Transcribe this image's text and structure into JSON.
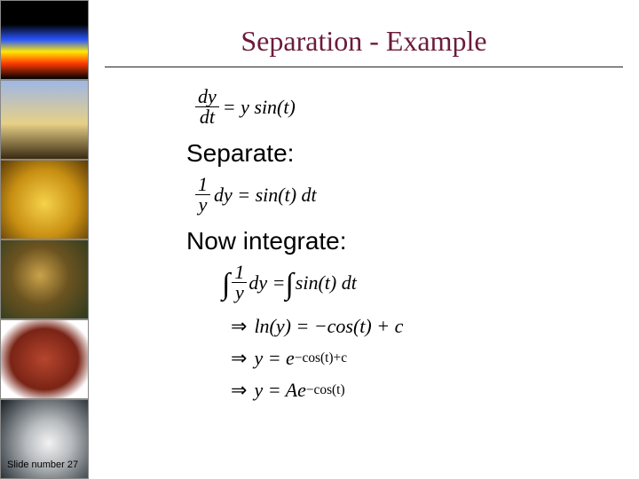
{
  "title": "Separation - Example",
  "labels": {
    "separate": "Separate:",
    "integrate": "Now integrate:"
  },
  "equations": {
    "ode_lhs_num": "dy",
    "ode_lhs_den": "dt",
    "ode_rhs": " = y sin(t)",
    "sep_frac_num": "1",
    "sep_frac_den": "y",
    "sep_rhs": " dy = sin(t) dt",
    "int_lhs_frac_num": "1",
    "int_lhs_frac_den": "y",
    "int_lhs_after": " dy = ",
    "int_rhs": "sin(t) dt",
    "res1": " ln(y) = −cos(t) + c",
    "res2_pre": " y = e",
    "res2_exp": "−cos(t)+c",
    "res3_pre": " y = Ae",
    "res3_exp": "−cos(t)"
  },
  "footer": "Slide number 27",
  "colors": {
    "title": "#6b1b3a",
    "rule": "#222222",
    "text": "#000000",
    "bg": "#ffffff"
  },
  "sidebar": {
    "thumbs": [
      {
        "name": "thermal-ring",
        "bg": "linear-gradient(180deg,#000 0%,#000 30%,#2a56ff 50%,#ffea00 65%,#ff3a00 80%,#000 100%)"
      },
      {
        "name": "oil-pump",
        "bg": "linear-gradient(180deg,#9eb7e6 0%,#e7d087 55%,#3a2a10 100%)"
      },
      {
        "name": "gold-bars",
        "bg": "radial-gradient(circle at 50% 55%,#f6d24a 0%,#c88f12 55%,#5a3a08 100%)"
      },
      {
        "name": "leopard",
        "bg": "radial-gradient(circle at 45% 45%,#caa24a 0%,#6b5320 45%,#2d3a1e 100%)"
      },
      {
        "name": "liver",
        "bg": "radial-gradient(ellipse at 50% 50%,#b6452e 0%,#7a2416 55%,#ffffff 80%)"
      },
      {
        "name": "satellite-cloud",
        "bg": "radial-gradient(circle at 55% 55%,#f2f2f2 0%,#b8bcbf 35%,#555c61 75%,#1a1e22 100%)"
      }
    ]
  }
}
